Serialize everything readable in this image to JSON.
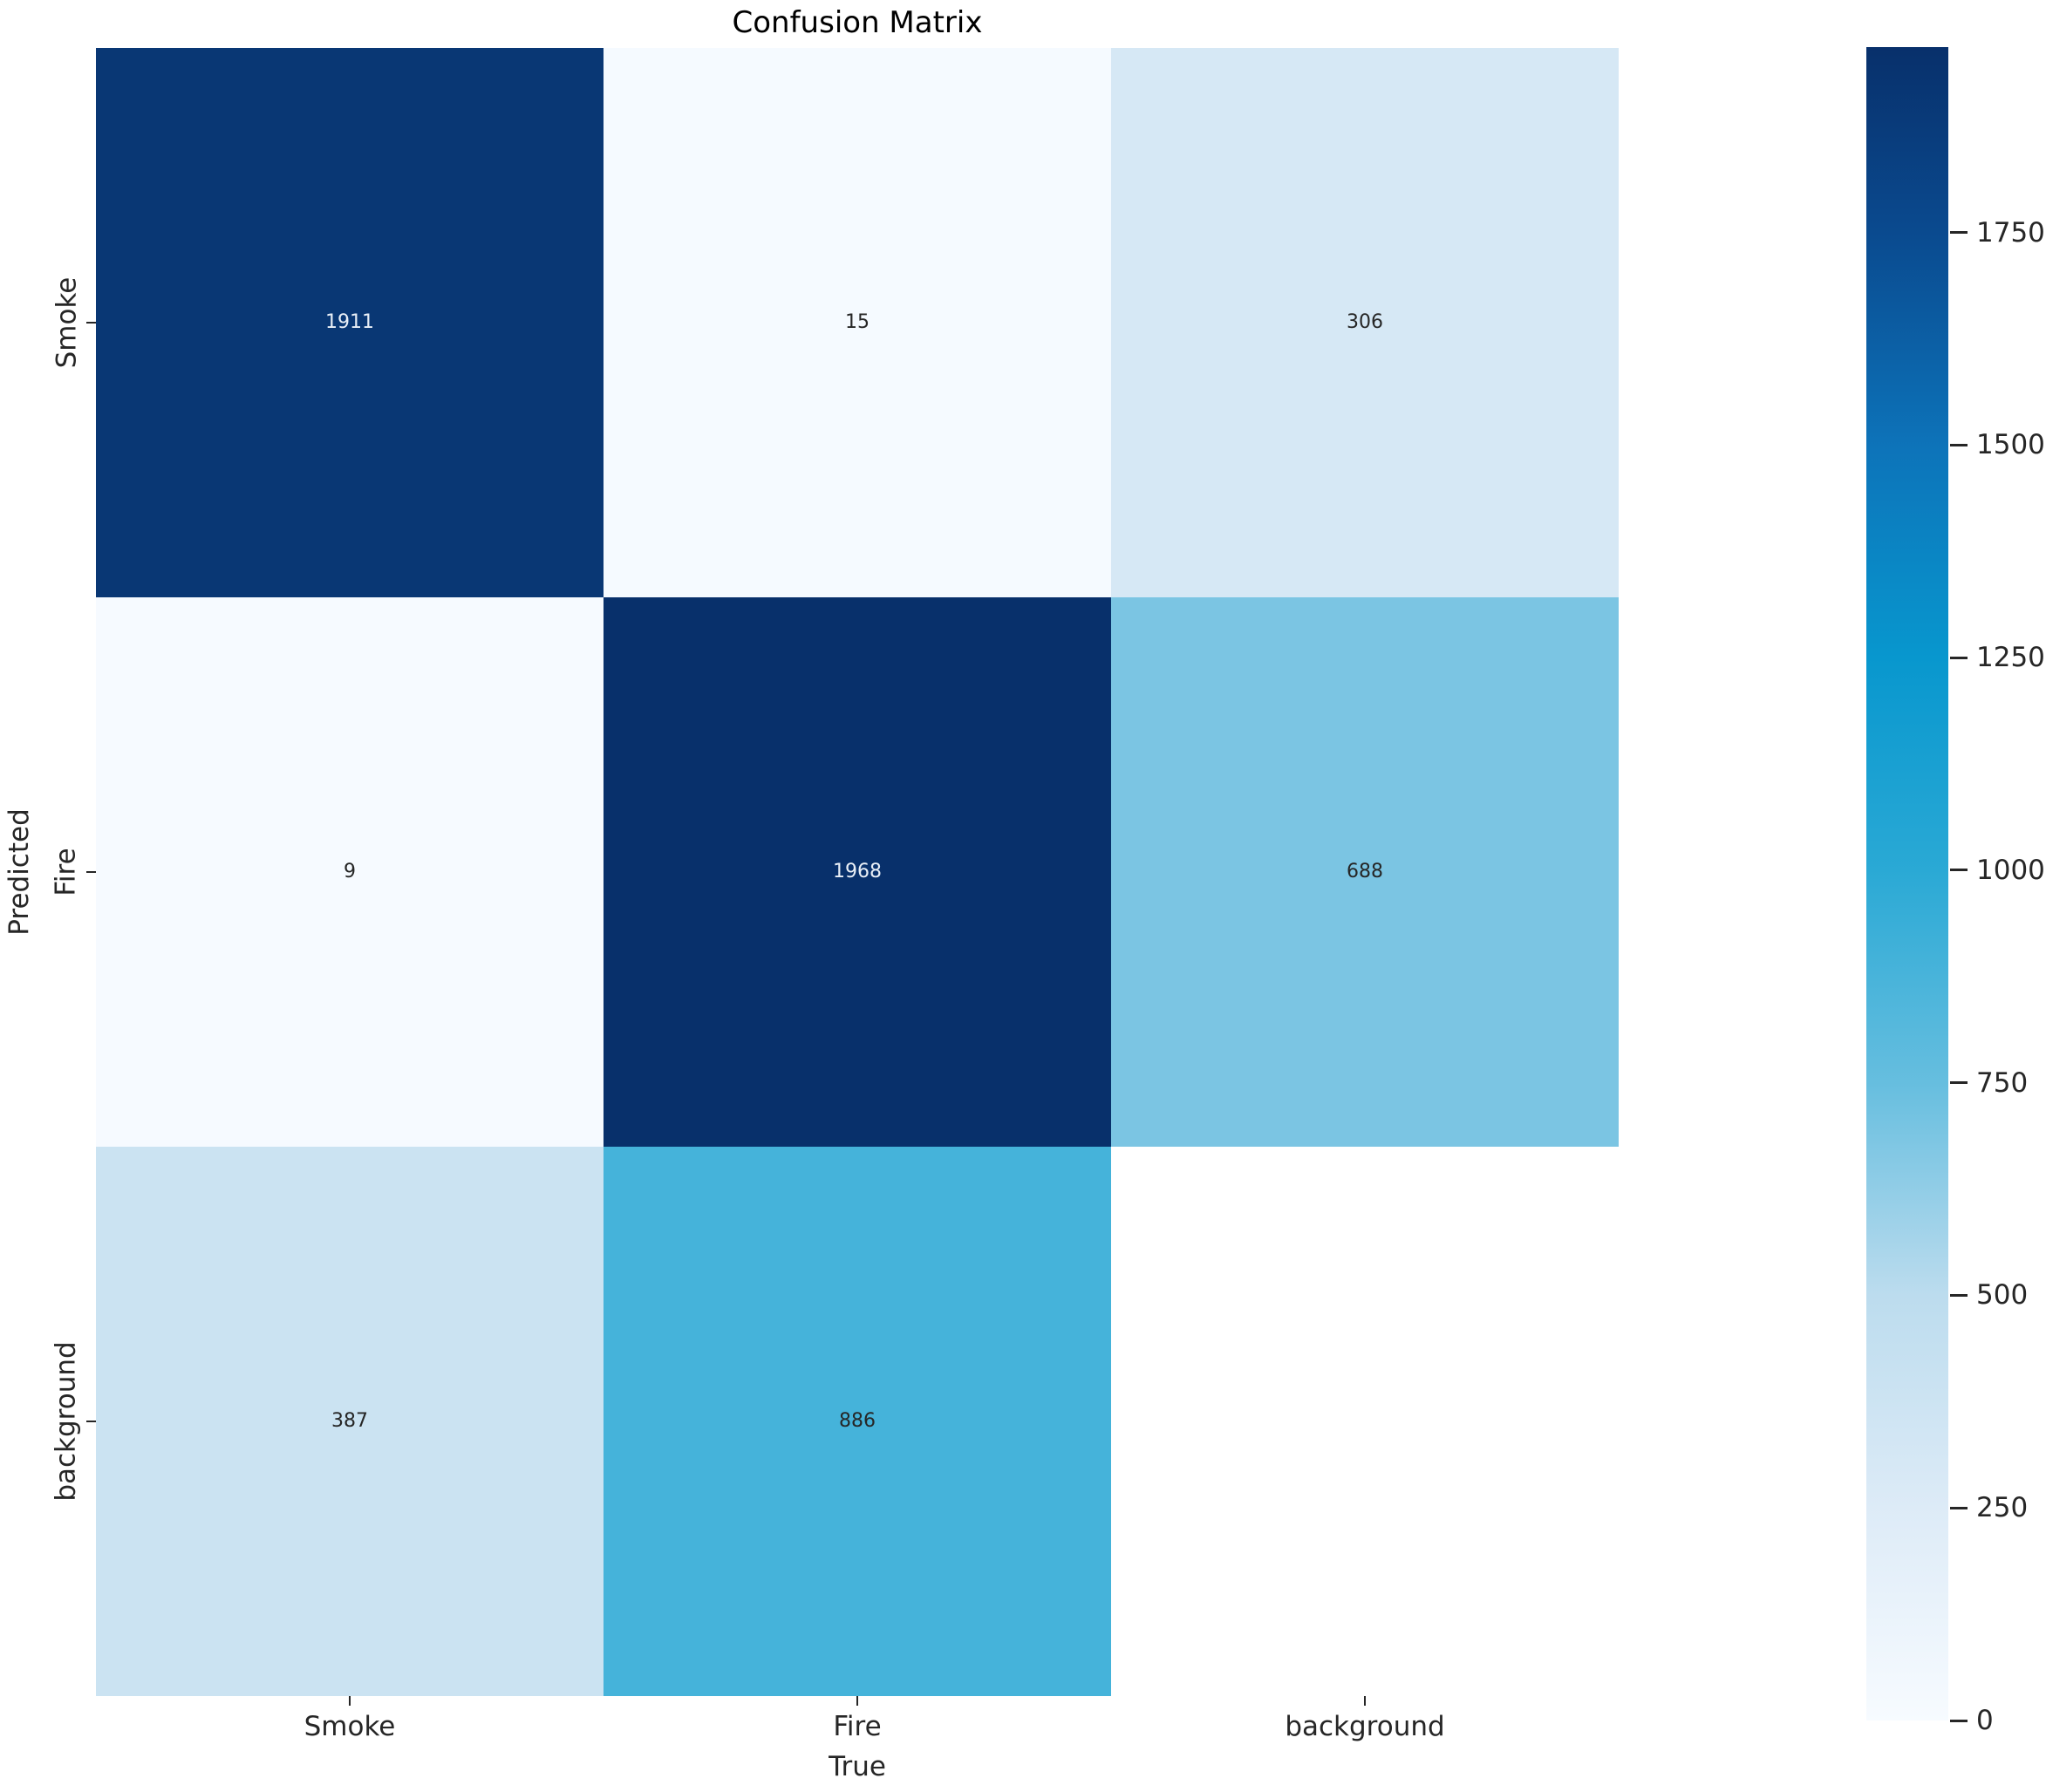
{
  "chart_data": {
    "type": "heatmap",
    "title": "Confusion Matrix",
    "xlabel": "True",
    "ylabel": "Predicted",
    "x_categories": [
      "Smoke",
      "Fire",
      "background"
    ],
    "y_categories": [
      "Smoke",
      "Fire",
      "background"
    ],
    "matrix": [
      [
        1911,
        15,
        306
      ],
      [
        9,
        1968,
        688
      ],
      [
        387,
        886,
        null
      ]
    ],
    "vmin": 0,
    "vmax": 1968,
    "colormap_stops": [
      {
        "value": 0,
        "color": "#f7fbff"
      },
      {
        "value": 250,
        "color": "#ddebf7"
      },
      {
        "value": 500,
        "color": "#bcdcee"
      },
      {
        "value": 750,
        "color": "#66bedf"
      },
      {
        "value": 1000,
        "color": "#2aa9d5"
      },
      {
        "value": 1250,
        "color": "#0897ce"
      },
      {
        "value": 1500,
        "color": "#0d73b9"
      },
      {
        "value": 1750,
        "color": "#0a4a8f"
      },
      {
        "value": 1968,
        "color": "#08306b"
      }
    ],
    "colorbar_ticks": [
      1750,
      1500,
      1250,
      1000,
      750,
      500,
      250,
      0
    ],
    "annotation_color_dark": "#262626",
    "annotation_color_light": "#e9eff7",
    "masked_cell_color": "#ffffff",
    "grid": false,
    "legend_position": "right-colorbar"
  }
}
